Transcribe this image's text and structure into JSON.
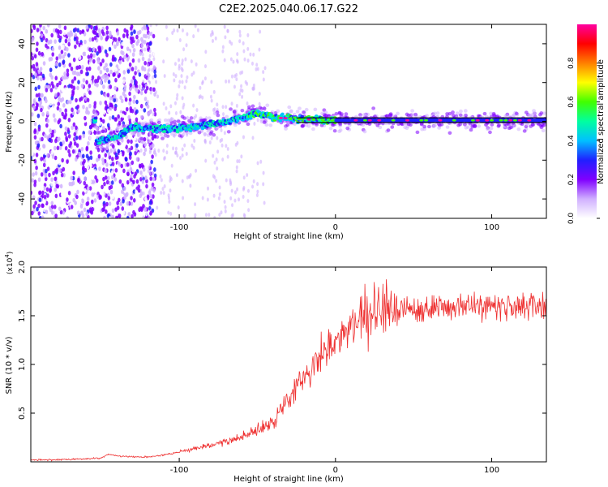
{
  "title": "C2E2.2025.040.06.17.G22",
  "chart_data": [
    {
      "type": "heatmap",
      "xlabel": "Height of straight line (km)",
      "ylabel": "Frequency (Hz)",
      "xlim": [
        -195,
        135
      ],
      "ylim": [
        -50,
        50
      ],
      "xticks": [
        -100,
        0,
        100
      ],
      "yticks": [
        -40,
        -20,
        0,
        20,
        40
      ],
      "colorbar": {
        "label": "Normalized spectral amplitude",
        "range": [
          0,
          1
        ],
        "ticks": [
          "0.0",
          "0.2",
          "0.4",
          "0.6",
          "0.8"
        ],
        "colormap": [
          "#ffffff",
          "#d0b0ff",
          "#8000ff",
          "#2020ff",
          "#00c0ff",
          "#00ffa0",
          "#40ff00",
          "#ffff00",
          "#ff8000",
          "#ff0000",
          "#ff00a0"
        ]
      },
      "ridge": [
        {
          "x": -153,
          "f": -10
        },
        {
          "x": -140,
          "f": -8
        },
        {
          "x": -130,
          "f": -3
        },
        {
          "x": -110,
          "f": -4
        },
        {
          "x": -90,
          "f": -3
        },
        {
          "x": -70,
          "f": 0
        },
        {
          "x": -50,
          "f": 4
        },
        {
          "x": -40,
          "f": 2
        },
        {
          "x": -20,
          "f": 1
        },
        {
          "x": 0,
          "f": 0.5
        },
        {
          "x": 50,
          "f": 0.5
        },
        {
          "x": 100,
          "f": 0.5
        },
        {
          "x": 135,
          "f": 0.5
        }
      ]
    },
    {
      "type": "line",
      "xlabel": "Height of straight line (km)",
      "ylabel": "SNR (10 * v/v)",
      "yscale_label": "(x10",
      "yscale_exp": "4",
      "xlim": [
        -195,
        135
      ],
      "ylim": [
        0,
        2.0
      ],
      "xticks": [
        -100,
        0,
        100
      ],
      "yticks": [
        "0.5",
        "1.0",
        "1.5",
        "2.0"
      ],
      "color": "#ee3030",
      "series": [
        {
          "x": [
            -195,
            -180,
            -160,
            -150,
            -145,
            -140,
            -130,
            -120,
            -110,
            -100,
            -90,
            -80,
            -70,
            -60,
            -50,
            -40,
            -35,
            -30,
            -25,
            -20,
            -15,
            -10,
            -5,
            0,
            5,
            10,
            20,
            30,
            40,
            50,
            60,
            70,
            80,
            90,
            100,
            110,
            120,
            135
          ],
          "values": [
            0.02,
            0.02,
            0.03,
            0.04,
            0.08,
            0.06,
            0.05,
            0.05,
            0.07,
            0.1,
            0.14,
            0.17,
            0.2,
            0.26,
            0.33,
            0.42,
            0.55,
            0.65,
            0.78,
            0.9,
            1.0,
            1.05,
            1.15,
            1.2,
            1.3,
            1.4,
            1.5,
            1.55,
            1.57,
            1.58,
            1.58,
            1.6,
            1.6,
            1.62,
            1.58,
            1.6,
            1.6,
            1.6
          ]
        }
      ]
    }
  ]
}
